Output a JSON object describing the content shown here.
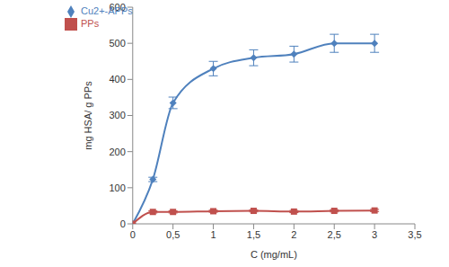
{
  "chart_data": {
    "type": "line",
    "x_label": "C (mg/mL)",
    "y_label": "mg HSA/ g PPs",
    "xlim": [
      0,
      3.5
    ],
    "xticks": [
      0,
      {
        "value": 0.5,
        "label": "0,5"
      },
      1,
      {
        "value": 1.5,
        "label": "1,5"
      },
      2,
      {
        "value": 2.5,
        "label": "2,5"
      },
      3,
      {
        "value": 3.5,
        "label": "3,5"
      }
    ],
    "ylim": [
      0,
      600
    ],
    "yticks": [
      0,
      100,
      200,
      300,
      400,
      500,
      600
    ],
    "grid": false,
    "legend": "upper left",
    "series": [
      {
        "name": "Cu2+-APPs",
        "color": "#4F81BD",
        "marker": "diamond",
        "line_style": "solid",
        "x": [
          0,
          0.25,
          0.5,
          1,
          1.5,
          2,
          2.5,
          3
        ],
        "values": [
          0,
          123,
          335,
          430,
          460,
          470,
          500,
          500
        ],
        "errors": [
          0,
          6,
          16,
          20,
          22,
          22,
          25,
          25
        ]
      },
      {
        "name": "PPs",
        "color": "#C0504D",
        "marker": "square",
        "line_style": "solid",
        "x": [
          0,
          0.25,
          0.5,
          1,
          1.5,
          2,
          2.5,
          3
        ],
        "values": [
          0,
          33,
          33,
          35,
          36,
          34,
          36,
          37
        ],
        "errors": [
          0,
          3,
          3,
          3,
          3,
          3,
          3,
          3
        ]
      }
    ]
  }
}
